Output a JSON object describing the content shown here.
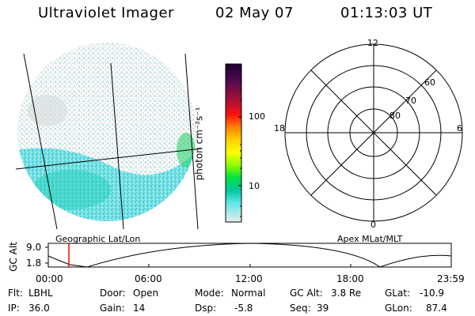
{
  "header": {
    "instrument": "Ultraviolet Imager",
    "date": "02 May 07",
    "time": "01:13:03 UT"
  },
  "image_panel": {
    "label": "Geographic Lat/Lon"
  },
  "colorbar": {
    "unit_label": "photon cm⁻²s⁻¹",
    "ticks": [
      "100",
      "10"
    ],
    "scale": "log",
    "colors": [
      "#1a0033",
      "#2a0a4a",
      "#6a1040",
      "#a01030",
      "#d01020",
      "#ff0000",
      "#ff7a00",
      "#ffcc00",
      "#ffff00",
      "#b8ff00",
      "#40ff00",
      "#00d060",
      "#00c0b0",
      "#40e0e0",
      "#a0f0f0",
      "#e0e8e8"
    ]
  },
  "polar_panel": {
    "label": "Apex MLat/MLT",
    "mlt_labels": {
      "top": "12",
      "bottom": "0",
      "left": "18",
      "right": "6"
    },
    "lat_labels": [
      "60",
      "70",
      "80"
    ]
  },
  "altitude_plot": {
    "ylabel": "GC Alt",
    "yticks": [
      "9.0",
      "1.8"
    ],
    "xticks": [
      "00:00",
      "06:00",
      "12:00",
      "18:00",
      "23:59"
    ],
    "current_time_marker_color": "#ff0000"
  },
  "info": {
    "flt_label": "Flt:",
    "flt_value": "LBHL",
    "ip_label": "IP:",
    "ip_value": "36.0",
    "door_label": "Door:",
    "door_value": "Open",
    "gain_label": "Gain:",
    "gain_value": "14",
    "mode_label": "Mode:",
    "mode_value": "Normal",
    "dsp_label": "Dsp:",
    "dsp_value": "-5.8",
    "gcalt_label": "GC Alt:",
    "gcalt_value": "3.8 Re",
    "seq_label": "Seq:",
    "seq_value": "39",
    "glat_label": "GLat:",
    "glat_value": "-10.9",
    "glon_label": "GLon:",
    "glon_value": "87.4"
  }
}
